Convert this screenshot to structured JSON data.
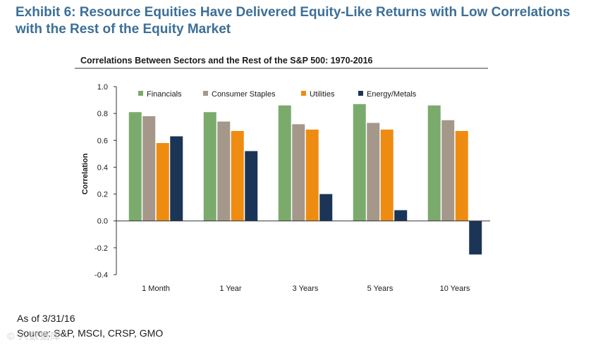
{
  "exhibit": {
    "title_line1": "Exhibit 6: Resource Equities Have Delivered Equity-Like Returns with Low Correlations",
    "title_line2": "with the Rest of the Equity Market"
  },
  "footer": {
    "as_of": "As of 3/31/16",
    "source": "Source:  S&P, MSCI, CRSP, GMO"
  },
  "watermark_text": "© 人数据库",
  "chart_data": {
    "type": "bar",
    "title": "Correlations Between Sectors and the Rest of the S&P 500: 1970-2016",
    "xlabel": "",
    "ylabel": "Correlation",
    "ylim": [
      -0.4,
      1.0
    ],
    "yticks": [
      "1.0",
      "0.8",
      "0.6",
      "0.4",
      "0.2",
      "0.0",
      "-0.2",
      "-0.4"
    ],
    "ytick_values": [
      1.0,
      0.8,
      0.6,
      0.4,
      0.2,
      0.0,
      -0.2,
      -0.4
    ],
    "grid": false,
    "legend_position": "top",
    "categories": [
      "1 Month",
      "1 Year",
      "3 Years",
      "5 Years",
      "10 Years"
    ],
    "series": [
      {
        "name": "Financials",
        "color": "#7aab6c",
        "values": [
          0.81,
          0.81,
          0.86,
          0.87,
          0.86
        ]
      },
      {
        "name": "Consumer Staples",
        "color": "#a5978a",
        "values": [
          0.78,
          0.74,
          0.72,
          0.73,
          0.75
        ]
      },
      {
        "name": "Utilities",
        "color": "#ee8c12",
        "values": [
          0.58,
          0.67,
          0.68,
          0.68,
          0.67
        ]
      },
      {
        "name": "Energy/Metals",
        "color": "#1b3557",
        "values": [
          0.63,
          0.52,
          0.2,
          0.08,
          -0.25
        ]
      }
    ]
  }
}
